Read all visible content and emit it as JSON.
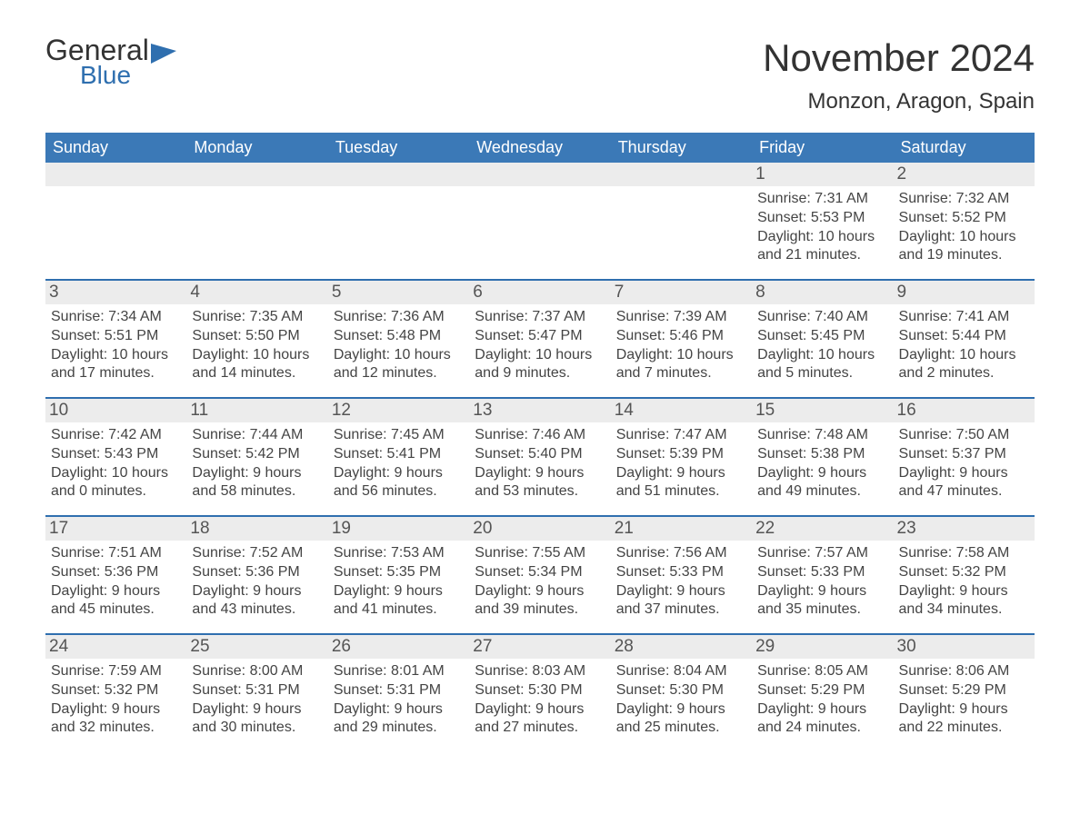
{
  "logo": {
    "word1": "General",
    "word2": "Blue"
  },
  "title": "November 2024",
  "location": "Monzon, Aragon, Spain",
  "colors": {
    "header_bg": "#3b79b7",
    "header_text": "#ffffff",
    "accent_border": "#2f6faf",
    "daynum_bg": "#ececec",
    "body_text": "#444444",
    "title_text": "#333333",
    "logo_blue": "#2f6faf"
  },
  "layout": {
    "columns": 7,
    "rows": 5,
    "leading_blanks": 5
  },
  "day_names": [
    "Sunday",
    "Monday",
    "Tuesday",
    "Wednesday",
    "Thursday",
    "Friday",
    "Saturday"
  ],
  "days": [
    {
      "n": 1,
      "sunrise": "7:31 AM",
      "sunset": "5:53 PM",
      "daylight": "10 hours and 21 minutes."
    },
    {
      "n": 2,
      "sunrise": "7:32 AM",
      "sunset": "5:52 PM",
      "daylight": "10 hours and 19 minutes."
    },
    {
      "n": 3,
      "sunrise": "7:34 AM",
      "sunset": "5:51 PM",
      "daylight": "10 hours and 17 minutes."
    },
    {
      "n": 4,
      "sunrise": "7:35 AM",
      "sunset": "5:50 PM",
      "daylight": "10 hours and 14 minutes."
    },
    {
      "n": 5,
      "sunrise": "7:36 AM",
      "sunset": "5:48 PM",
      "daylight": "10 hours and 12 minutes."
    },
    {
      "n": 6,
      "sunrise": "7:37 AM",
      "sunset": "5:47 PM",
      "daylight": "10 hours and 9 minutes."
    },
    {
      "n": 7,
      "sunrise": "7:39 AM",
      "sunset": "5:46 PM",
      "daylight": "10 hours and 7 minutes."
    },
    {
      "n": 8,
      "sunrise": "7:40 AM",
      "sunset": "5:45 PM",
      "daylight": "10 hours and 5 minutes."
    },
    {
      "n": 9,
      "sunrise": "7:41 AM",
      "sunset": "5:44 PM",
      "daylight": "10 hours and 2 minutes."
    },
    {
      "n": 10,
      "sunrise": "7:42 AM",
      "sunset": "5:43 PM",
      "daylight": "10 hours and 0 minutes."
    },
    {
      "n": 11,
      "sunrise": "7:44 AM",
      "sunset": "5:42 PM",
      "daylight": "9 hours and 58 minutes."
    },
    {
      "n": 12,
      "sunrise": "7:45 AM",
      "sunset": "5:41 PM",
      "daylight": "9 hours and 56 minutes."
    },
    {
      "n": 13,
      "sunrise": "7:46 AM",
      "sunset": "5:40 PM",
      "daylight": "9 hours and 53 minutes."
    },
    {
      "n": 14,
      "sunrise": "7:47 AM",
      "sunset": "5:39 PM",
      "daylight": "9 hours and 51 minutes."
    },
    {
      "n": 15,
      "sunrise": "7:48 AM",
      "sunset": "5:38 PM",
      "daylight": "9 hours and 49 minutes."
    },
    {
      "n": 16,
      "sunrise": "7:50 AM",
      "sunset": "5:37 PM",
      "daylight": "9 hours and 47 minutes."
    },
    {
      "n": 17,
      "sunrise": "7:51 AM",
      "sunset": "5:36 PM",
      "daylight": "9 hours and 45 minutes."
    },
    {
      "n": 18,
      "sunrise": "7:52 AM",
      "sunset": "5:36 PM",
      "daylight": "9 hours and 43 minutes."
    },
    {
      "n": 19,
      "sunrise": "7:53 AM",
      "sunset": "5:35 PM",
      "daylight": "9 hours and 41 minutes."
    },
    {
      "n": 20,
      "sunrise": "7:55 AM",
      "sunset": "5:34 PM",
      "daylight": "9 hours and 39 minutes."
    },
    {
      "n": 21,
      "sunrise": "7:56 AM",
      "sunset": "5:33 PM",
      "daylight": "9 hours and 37 minutes."
    },
    {
      "n": 22,
      "sunrise": "7:57 AM",
      "sunset": "5:33 PM",
      "daylight": "9 hours and 35 minutes."
    },
    {
      "n": 23,
      "sunrise": "7:58 AM",
      "sunset": "5:32 PM",
      "daylight": "9 hours and 34 minutes."
    },
    {
      "n": 24,
      "sunrise": "7:59 AM",
      "sunset": "5:32 PM",
      "daylight": "9 hours and 32 minutes."
    },
    {
      "n": 25,
      "sunrise": "8:00 AM",
      "sunset": "5:31 PM",
      "daylight": "9 hours and 30 minutes."
    },
    {
      "n": 26,
      "sunrise": "8:01 AM",
      "sunset": "5:31 PM",
      "daylight": "9 hours and 29 minutes."
    },
    {
      "n": 27,
      "sunrise": "8:03 AM",
      "sunset": "5:30 PM",
      "daylight": "9 hours and 27 minutes."
    },
    {
      "n": 28,
      "sunrise": "8:04 AM",
      "sunset": "5:30 PM",
      "daylight": "9 hours and 25 minutes."
    },
    {
      "n": 29,
      "sunrise": "8:05 AM",
      "sunset": "5:29 PM",
      "daylight": "9 hours and 24 minutes."
    },
    {
      "n": 30,
      "sunrise": "8:06 AM",
      "sunset": "5:29 PM",
      "daylight": "9 hours and 22 minutes."
    }
  ],
  "labels": {
    "sunrise_prefix": "Sunrise: ",
    "sunset_prefix": "Sunset: ",
    "daylight_prefix": "Daylight: "
  }
}
